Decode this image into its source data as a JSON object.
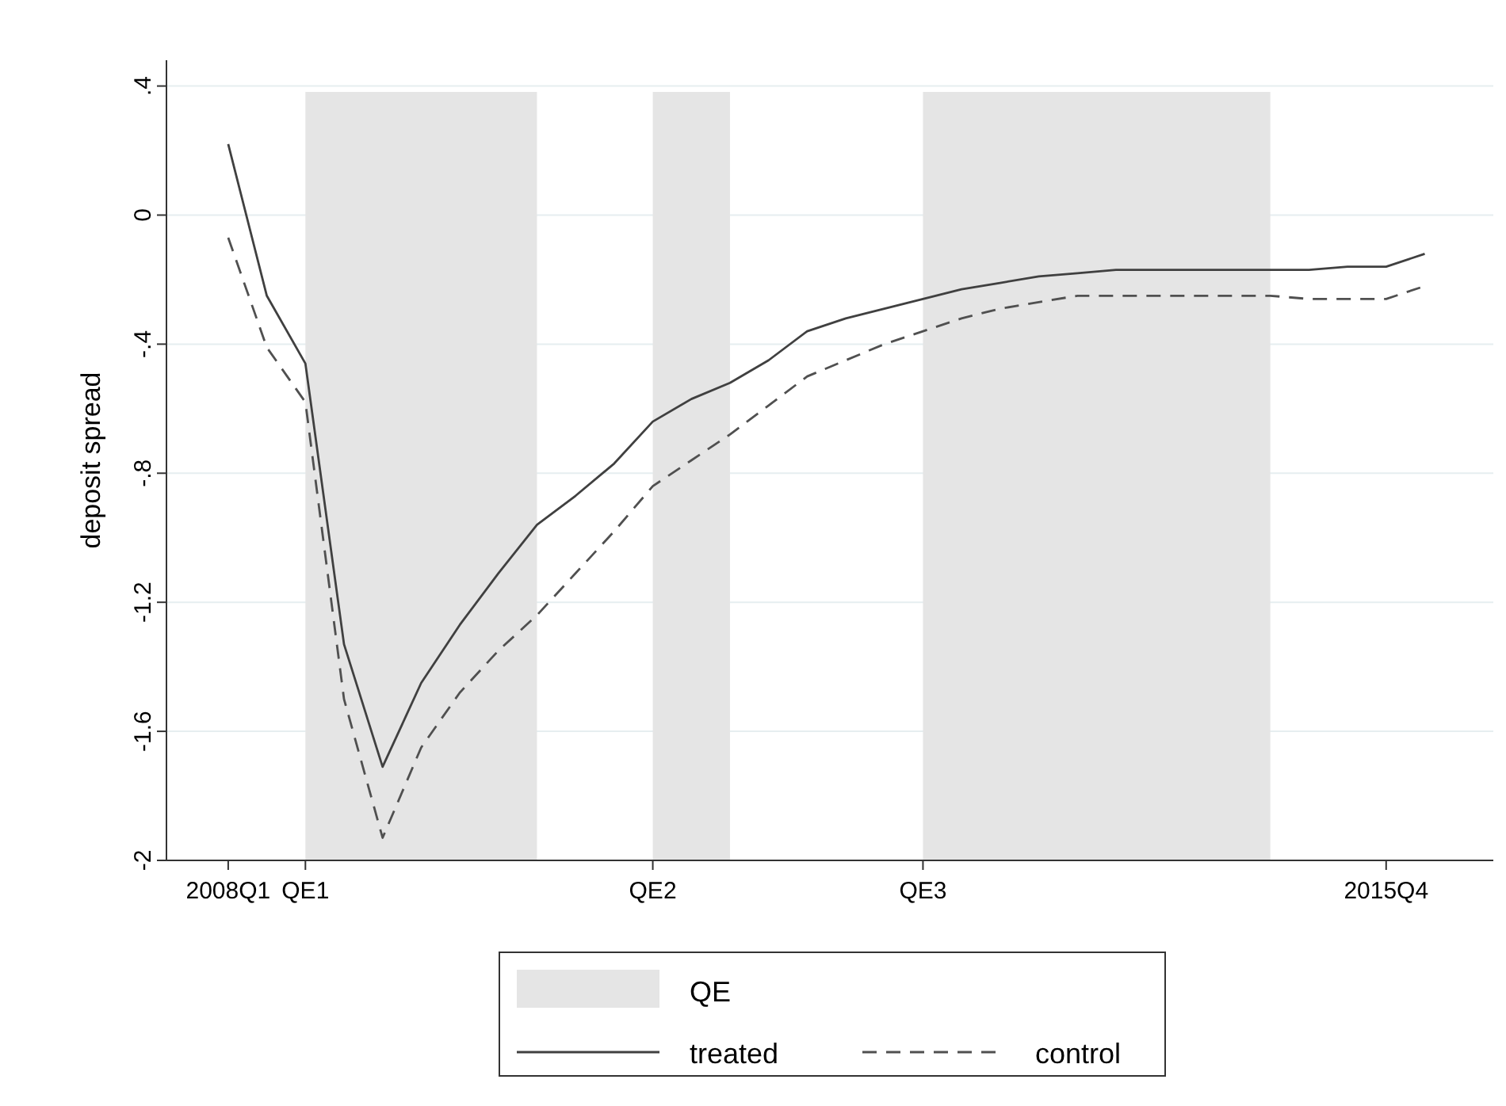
{
  "chart_data": {
    "type": "line",
    "ylabel": "deposit spread",
    "categories": [
      "2008Q1",
      null,
      "QE1",
      null,
      null,
      null,
      null,
      null,
      null,
      null,
      null,
      "QE2",
      null,
      null,
      null,
      null,
      null,
      null,
      "QE3",
      null,
      null,
      null,
      null,
      null,
      null,
      null,
      null,
      null,
      null,
      null,
      "2015Q4",
      null
    ],
    "ylim": [
      -2,
      0.48
    ],
    "yticks": [
      {
        "value": 0.4,
        "label": ".4"
      },
      0,
      {
        "value": -0.4,
        "label": "-.4"
      },
      {
        "value": -0.8,
        "label": "-.8"
      },
      {
        "value": -1.2,
        "label": "-1.2"
      },
      {
        "value": -1.6,
        "label": "-1.6"
      },
      -2
    ],
    "grid": "y",
    "legend": "bottom",
    "annotations": [
      "QE"
    ],
    "series": [
      {
        "name": "treated",
        "color": "#404040",
        "line_style": "solid",
        "values": [
          0.22,
          -0.25,
          -0.46,
          -1.33,
          -1.71,
          -1.45,
          -1.27,
          -1.11,
          -0.96,
          -0.87,
          -0.77,
          -0.64,
          -0.57,
          -0.52,
          -0.45,
          -0.36,
          -0.32,
          -0.29,
          -0.26,
          -0.23,
          -0.21,
          -0.19,
          -0.18,
          -0.17,
          -0.17,
          -0.17,
          -0.17,
          -0.17,
          -0.17,
          -0.16,
          -0.16,
          -0.12
        ]
      },
      {
        "name": "control",
        "color": "#505050",
        "line_style": "dashed",
        "values": [
          -0.07,
          -0.41,
          -0.58,
          -1.5,
          -1.93,
          -1.65,
          -1.48,
          -1.35,
          -1.24,
          -1.11,
          -0.98,
          -0.84,
          -0.76,
          -0.68,
          -0.59,
          -0.5,
          -0.45,
          -0.4,
          -0.36,
          -0.32,
          -0.29,
          -0.27,
          -0.25,
          -0.25,
          -0.25,
          -0.25,
          -0.25,
          -0.25,
          -0.26,
          -0.26,
          -0.26,
          -0.22
        ]
      }
    ]
  }
}
